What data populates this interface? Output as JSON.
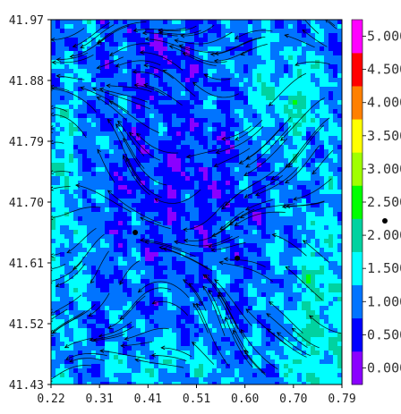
{
  "chart_data": {
    "type": "heatmap",
    "title": "",
    "xlabel": "",
    "ylabel": "",
    "xlim": [
      0.22,
      0.79
    ],
    "ylim": [
      41.43,
      41.97
    ],
    "x_ticks": [
      "0.22",
      "0.31",
      "0.41",
      "0.51",
      "0.60",
      "0.70",
      "0.79"
    ],
    "y_ticks": [
      "41.43",
      "41.52",
      "41.61",
      "41.70",
      "41.79",
      "41.88",
      "41.97"
    ],
    "colorbar": {
      "range": [
        -0.25,
        5.25
      ],
      "ticks": [
        "0.000",
        "0.500",
        "1.000",
        "1.500",
        "2.000",
        "2.500",
        "3.000",
        "3.500",
        "4.000",
        "4.500",
        "5.000"
      ],
      "tick_values": [
        0,
        0.5,
        1,
        1.5,
        2,
        2.5,
        3,
        3.5,
        4,
        4.5,
        5
      ],
      "colors": [
        "#8a00ff",
        "#0000ff",
        "#0074ff",
        "#00ffff",
        "#00d2a0",
        "#00ff00",
        "#a0ff00",
        "#ffff00",
        "#ff8000",
        "#ff0000",
        "#ff00ff"
      ]
    },
    "overlay": "streamlines",
    "markers": [
      {
        "x": 0.385,
        "y": 41.655
      },
      {
        "x": 0.585,
        "y": 41.617
      }
    ],
    "outside_marker": "yes"
  }
}
